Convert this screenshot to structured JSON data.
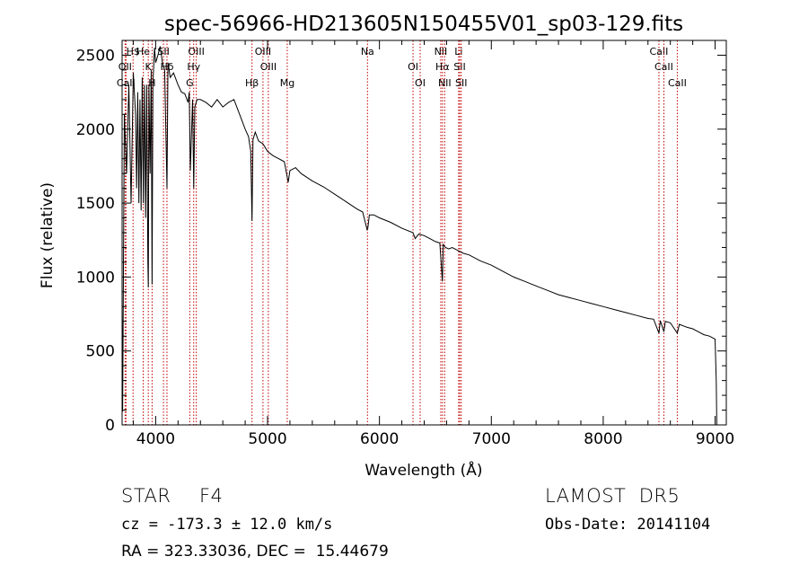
{
  "chart_data": {
    "type": "line",
    "title": "spec-56966-HD213605N150455V01_sp03-129.fits",
    "xlabel": "Wavelength (Å)",
    "ylabel": "Flux (relative)",
    "xlim": [
      3700,
      9100
    ],
    "ylim": [
      0,
      2600
    ],
    "xticks": [
      4000,
      5000,
      6000,
      7000,
      8000,
      9000
    ],
    "yticks": [
      0,
      500,
      1000,
      1500,
      2000,
      2500
    ],
    "grid": false,
    "series": [
      {
        "color": "#000000",
        "x": [
          3700,
          3705,
          3720,
          3740,
          3760,
          3780,
          3800,
          3820,
          3830,
          3840,
          3850,
          3860,
          3870,
          3880,
          3890,
          3900,
          3910,
          3920,
          3930,
          3934,
          3940,
          3950,
          3960,
          3968,
          3975,
          3990,
          4000,
          4020,
          4040,
          4060,
          4080,
          4101,
          4110,
          4130,
          4160,
          4200,
          4230,
          4260,
          4290,
          4300,
          4310,
          4330,
          4340,
          4350,
          4370,
          4400,
          4450,
          4500,
          4550,
          4600,
          4650,
          4700,
          4750,
          4800,
          4830,
          4850,
          4861,
          4870,
          4890,
          4920,
          4960,
          5000,
          5050,
          5100,
          5150,
          5170,
          5184,
          5200,
          5250,
          5300,
          5400,
          5500,
          5600,
          5700,
          5800,
          5850,
          5890,
          5896,
          5910,
          5950,
          6000,
          6100,
          6200,
          6300,
          6320,
          6350,
          6400,
          6450,
          6500,
          6540,
          6563,
          6570,
          6590,
          6620,
          6650,
          6700,
          6750,
          6800,
          6900,
          7000,
          7100,
          7200,
          7300,
          7400,
          7500,
          7600,
          7700,
          7800,
          7900,
          8000,
          8100,
          8200,
          8300,
          8400,
          8450,
          8498,
          8510,
          8542,
          8555,
          8600,
          8662,
          8680,
          8750,
          8800,
          8850,
          8900,
          8950,
          9000,
          9010,
          9015,
          9030
        ],
        "values": [
          780,
          90,
          2100,
          1700,
          2300,
          1500,
          2380,
          2100,
          1600,
          2250,
          1500,
          2200,
          1450,
          2350,
          1500,
          2300,
          1400,
          2300,
          1100,
          930,
          2300,
          1700,
          2400,
          950,
          2300,
          2550,
          2450,
          2500,
          2560,
          2450,
          2400,
          1600,
          2450,
          2350,
          2380,
          2300,
          2250,
          2240,
          2180,
          2250,
          1720,
          2200,
          1600,
          2150,
          2200,
          2200,
          2180,
          2150,
          2200,
          2150,
          2180,
          2200,
          2100,
          2000,
          1950,
          1850,
          1380,
          1930,
          1980,
          1920,
          1900,
          1850,
          1820,
          1800,
          1780,
          1700,
          1640,
          1720,
          1740,
          1700,
          1650,
          1610,
          1560,
          1510,
          1460,
          1440,
          1320,
          1330,
          1420,
          1420,
          1400,
          1370,
          1330,
          1300,
          1260,
          1290,
          1280,
          1260,
          1240,
          1230,
          970,
          1220,
          1200,
          1190,
          1200,
          1180,
          1160,
          1150,
          1110,
          1080,
          1040,
          1000,
          970,
          940,
          910,
          880,
          860,
          840,
          820,
          800,
          780,
          760,
          740,
          720,
          715,
          620,
          705,
          630,
          700,
          690,
          620,
          680,
          660,
          650,
          630,
          610,
          600,
          580,
          300,
          0,
          0
        ]
      }
    ],
    "lines": [
      {
        "label": "H$",
        "x": 3798
      },
      {
        "label": "OII",
        "x": 3727
      },
      {
        "label": "CaII",
        "x": 3735
      },
      {
        "label": "He",
        "x": 3889
      },
      {
        "label": "K",
        "x": 3934
      },
      {
        "label": "H",
        "x": 3968
      },
      {
        "label": "SII",
        "x": 4070
      },
      {
        "label": "Hδ",
        "x": 4101
      },
      {
        "label": "G",
        "x": 4305
      },
      {
        "label": "OIII",
        "x": 4363
      },
      {
        "label": "Hγ",
        "x": 4340
      },
      {
        "label": "Hβ",
        "x": 4861
      },
      {
        "label": "OIII",
        "x": 4959
      },
      {
        "label": "OIII",
        "x": 5007
      },
      {
        "label": "Mg",
        "x": 5176
      },
      {
        "label": "Na",
        "x": 5893
      },
      {
        "label": "OI",
        "x": 6300
      },
      {
        "label": "OI",
        "x": 6364
      },
      {
        "label": "NII",
        "x": 6548
      },
      {
        "label": "Hα",
        "x": 6563
      },
      {
        "label": "NII",
        "x": 6583
      },
      {
        "label": "Li",
        "x": 6708
      },
      {
        "label": "SII",
        "x": 6717
      },
      {
        "label": "SII",
        "x": 6731
      },
      {
        "label": "CaII",
        "x": 8498
      },
      {
        "label": "CaII",
        "x": 8542
      },
      {
        "label": "CaII",
        "x": 8662
      }
    ]
  },
  "info": {
    "object_class": "STAR",
    "subclass": "F4",
    "survey": "LAMOST  DR5",
    "cz": "cz = -173.3 ± 12.0 km/s",
    "obs_date": "Obs-Date: 20141104",
    "coords": "RA = 323.33036, DEC =  15.44679"
  }
}
